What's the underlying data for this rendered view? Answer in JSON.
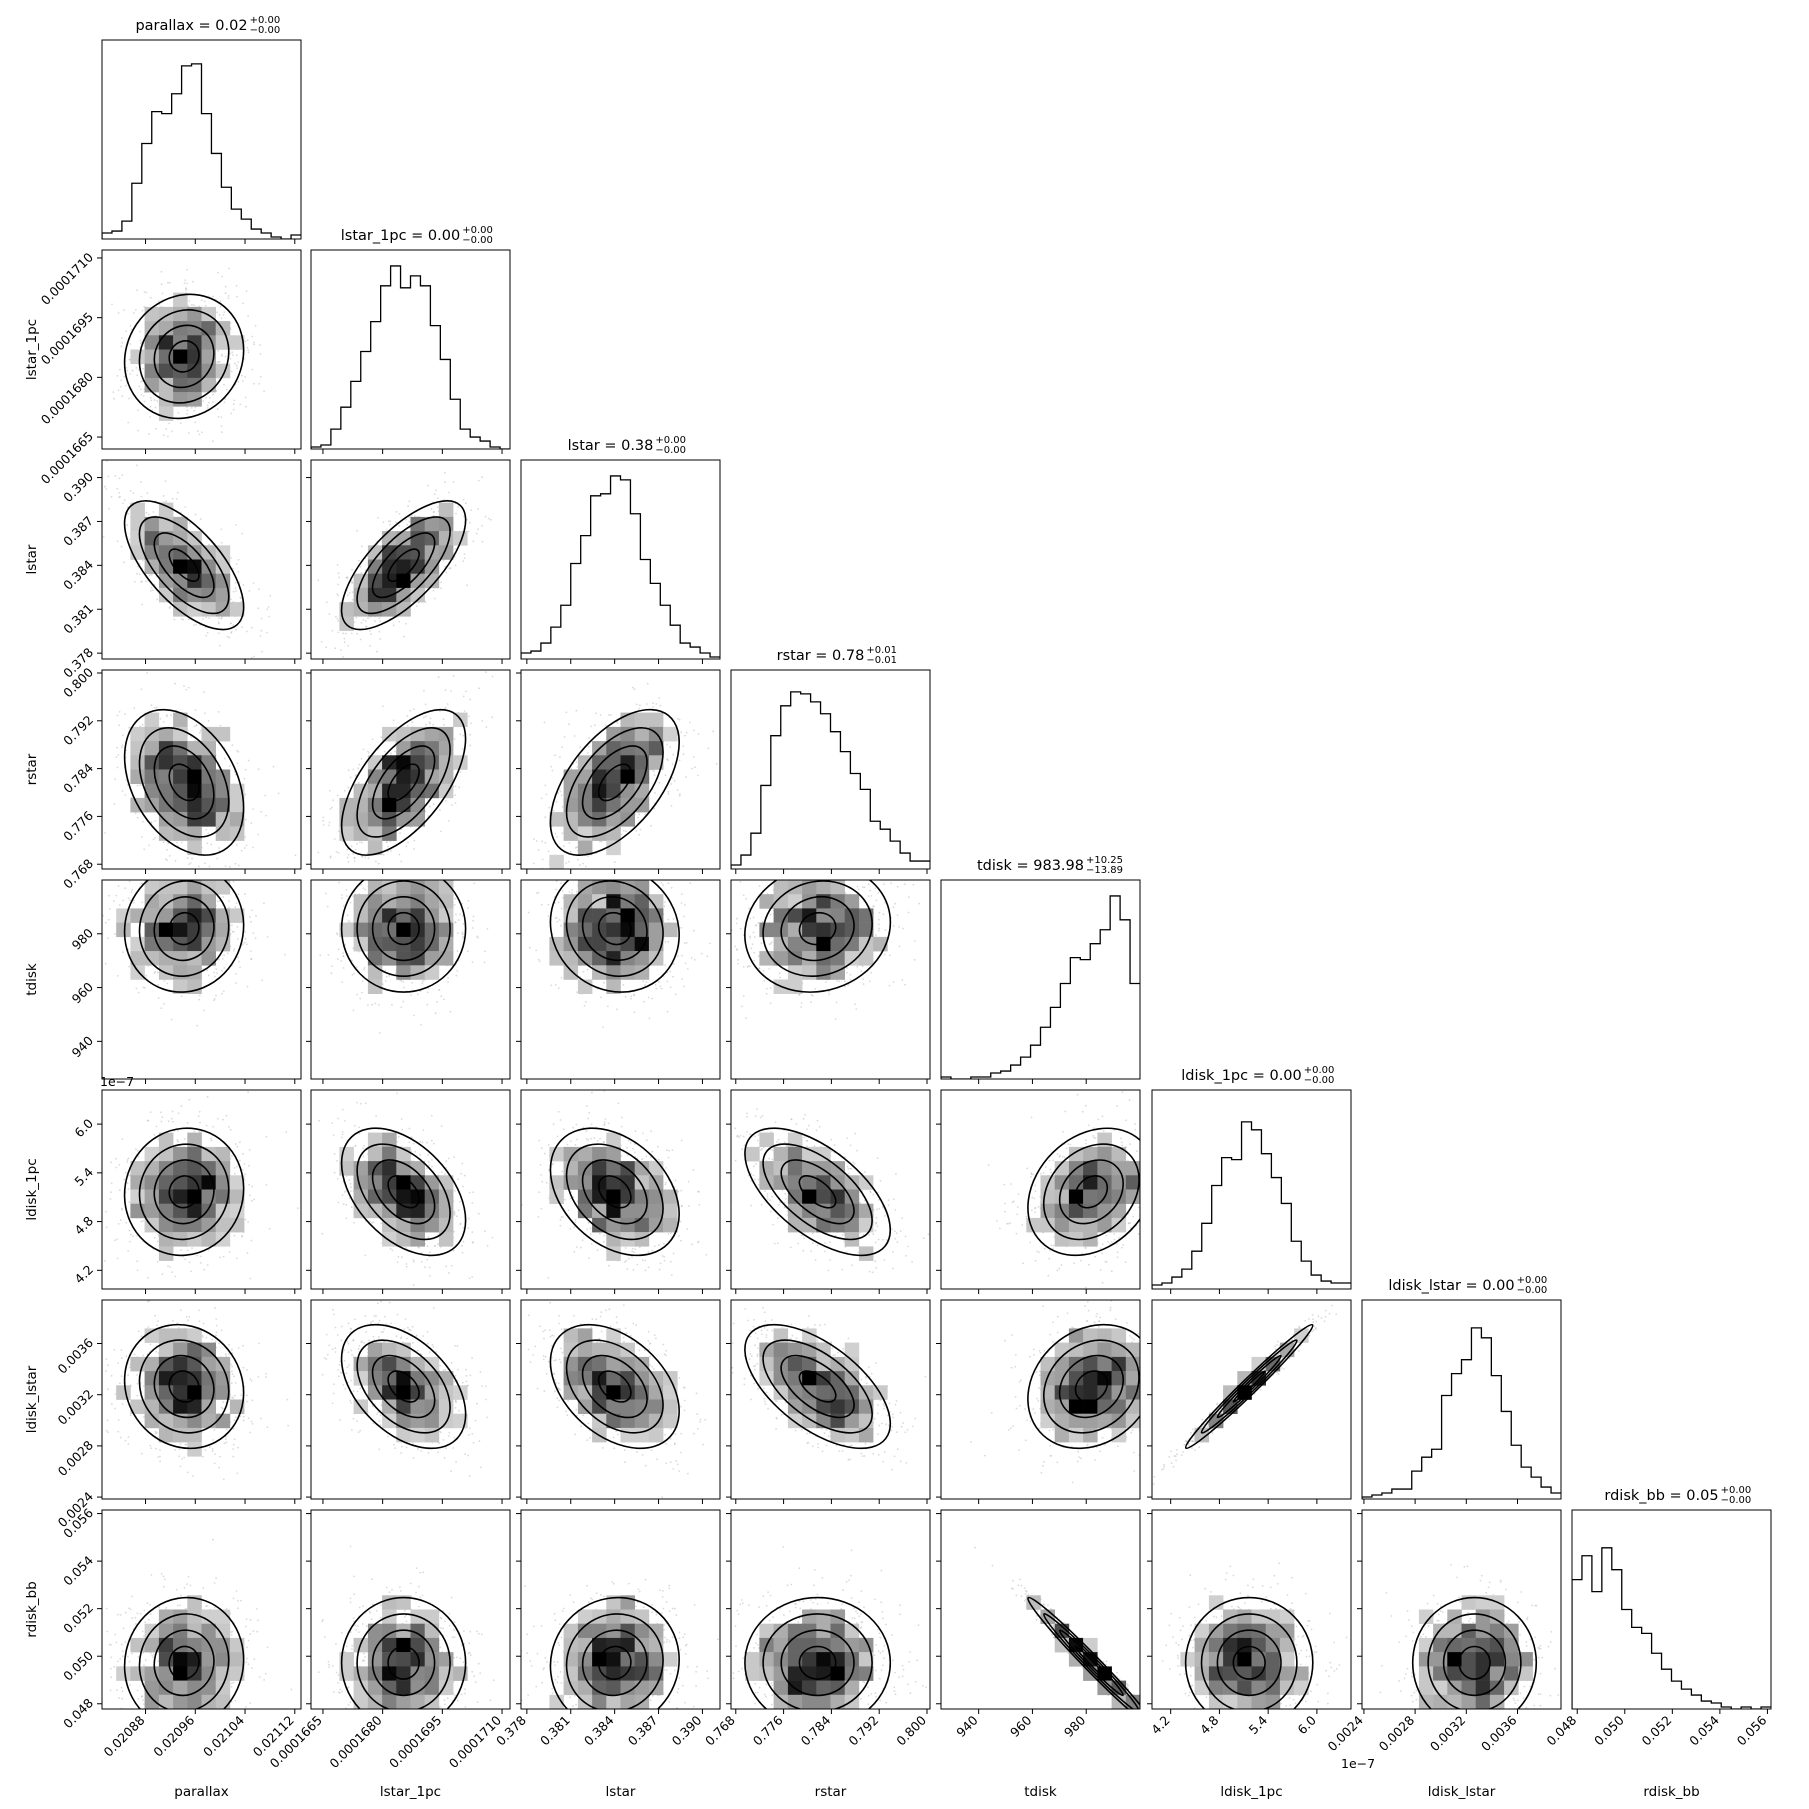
{
  "chart_data": {
    "type": "corner",
    "params": [
      "parallax",
      "lstar_1pc",
      "lstar",
      "rstar",
      "tdisk",
      "ldisk_1pc",
      "ldisk_lstar",
      "rdisk_bb"
    ],
    "axis_labels": [
      "parallax",
      "lstar_1pc",
      "lstar",
      "rstar",
      "tdisk",
      "ldisk_1pc",
      "ldisk_lstar",
      "rdisk_bb"
    ],
    "titles": [
      {
        "text": "parallax = 0.02",
        "sup": "+0.00",
        "sub": "−0.00"
      },
      {
        "text": "lstar_1pc = 0.00",
        "sup": "+0.00",
        "sub": "−0.00"
      },
      {
        "text": "lstar = 0.38",
        "sup": "+0.00",
        "sub": "−0.00"
      },
      {
        "text": "rstar = 0.78",
        "sup": "+0.01",
        "sub": "−0.01"
      },
      {
        "text": "tdisk = 983.98",
        "sup": "+10.25",
        "sub": "−13.89"
      },
      {
        "text": "ldisk_1pc = 0.00",
        "sup": "+0.00",
        "sub": "−0.00"
      },
      {
        "text": "ldisk_lstar = 0.00",
        "sup": "+0.00",
        "sub": "−0.00"
      },
      {
        "text": "rdisk_bb = 0.05",
        "sup": "+0.00",
        "sub": "−0.00"
      }
    ],
    "ranges": [
      [
        0.02081,
        0.02113
      ],
      [
        0.0001662,
        0.0001712
      ],
      [
        0.3776,
        0.3912
      ],
      [
        0.7672,
        0.8005
      ],
      [
        926,
        1000
      ],
      [
        3.97e-07,
        6.42e-07
      ],
      [
        0.002385,
        0.00394
      ],
      [
        0.04778,
        0.05615
      ]
    ],
    "ticks": [
      [
        "0.02088",
        "0.02096",
        "0.02104",
        "0.02112"
      ],
      [
        "0.0001665",
        "0.0001680",
        "0.0001695",
        "0.0001710"
      ],
      [
        "0.378",
        "0.381",
        "0.384",
        "0.387",
        "0.390"
      ],
      [
        "0.768",
        "0.776",
        "0.784",
        "0.792",
        "0.800"
      ],
      [
        "940",
        "960",
        "980"
      ],
      [
        "4.2",
        "4.8",
        "5.4",
        "6.0"
      ],
      [
        "0.0024",
        "0.0028",
        "0.0032",
        "0.0036"
      ],
      [
        "0.048",
        "0.050",
        "0.052",
        "0.054",
        "0.056"
      ]
    ],
    "tick_values": [
      [
        0.02088,
        0.02096,
        0.02104,
        0.02112
      ],
      [
        0.0001665,
        0.000168,
        0.0001695,
        0.000171
      ],
      [
        0.378,
        0.381,
        0.384,
        0.387,
        0.39
      ],
      [
        0.768,
        0.776,
        0.784,
        0.792,
        0.8
      ],
      [
        940,
        960,
        980
      ],
      [
        4.2e-07,
        4.8e-07,
        5.4e-07,
        6e-07
      ],
      [
        0.0024,
        0.0028,
        0.0032,
        0.0036
      ],
      [
        0.048,
        0.05,
        0.052,
        0.054,
        0.056
      ]
    ],
    "offset_label": "1e−7",
    "offset_param": 5,
    "histograms": [
      [
        0.03,
        0.04,
        0.09,
        0.28,
        0.48,
        0.64,
        0.63,
        0.73,
        0.87,
        0.88,
        0.63,
        0.43,
        0.26,
        0.15,
        0.1,
        0.05,
        0.03,
        0.01,
        0.0,
        0.02
      ],
      [
        0.01,
        0.02,
        0.1,
        0.21,
        0.34,
        0.49,
        0.64,
        0.82,
        0.92,
        0.81,
        0.87,
        0.82,
        0.62,
        0.45,
        0.25,
        0.1,
        0.06,
        0.04,
        0.01,
        0.0
      ],
      [
        0.03,
        0.04,
        0.08,
        0.16,
        0.27,
        0.48,
        0.62,
        0.82,
        0.83,
        0.92,
        0.9,
        0.73,
        0.5,
        0.38,
        0.27,
        0.17,
        0.08,
        0.06,
        0.03,
        0.01
      ],
      [
        0.02,
        0.07,
        0.18,
        0.42,
        0.67,
        0.82,
        0.89,
        0.88,
        0.84,
        0.78,
        0.69,
        0.59,
        0.48,
        0.4,
        0.24,
        0.2,
        0.14,
        0.08,
        0.04,
        0.04
      ],
      [
        0.01,
        0.0,
        0.0,
        0.01,
        0.01,
        0.03,
        0.04,
        0.07,
        0.11,
        0.17,
        0.26,
        0.36,
        0.48,
        0.61,
        0.6,
        0.68,
        0.75,
        0.92,
        0.8,
        0.48
      ],
      [
        0.02,
        0.03,
        0.06,
        0.1,
        0.19,
        0.33,
        0.52,
        0.66,
        0.65,
        0.84,
        0.8,
        0.68,
        0.56,
        0.43,
        0.24,
        0.14,
        0.07,
        0.04,
        0.03,
        0.03
      ],
      [
        0.01,
        0.02,
        0.03,
        0.05,
        0.05,
        0.14,
        0.21,
        0.25,
        0.52,
        0.63,
        0.7,
        0.86,
        0.81,
        0.62,
        0.44,
        0.27,
        0.16,
        0.11,
        0.06,
        0.03
      ],
      [
        0.65,
        0.77,
        0.59,
        0.81,
        0.7,
        0.5,
        0.41,
        0.38,
        0.28,
        0.2,
        0.14,
        0.1,
        0.07,
        0.04,
        0.03,
        0.01,
        0.0,
        0.01,
        0.0,
        0.01
      ]
    ],
    "correlations": [
      [
        0,
        0,
        0,
        0,
        0,
        0,
        0,
        0
      ],
      [
        0.1,
        0,
        0,
        0,
        0,
        0,
        0,
        0
      ],
      [
        -0.65,
        0.7,
        0,
        0,
        0,
        0,
        0,
        0
      ],
      [
        -0.35,
        0.6,
        0.55,
        0,
        0,
        0,
        0,
        0
      ],
      [
        0.05,
        0.0,
        -0.1,
        0.1,
        0,
        0,
        0,
        0
      ],
      [
        0.05,
        -0.45,
        -0.35,
        -0.6,
        0.25,
        0,
        0,
        0
      ],
      [
        -0.1,
        -0.45,
        -0.4,
        -0.6,
        0.2,
        0.985,
        0,
        0
      ],
      [
        0.05,
        0.0,
        0.05,
        0.0,
        -0.985,
        0.0,
        0.0,
        0
      ]
    ],
    "smooth": false
  }
}
